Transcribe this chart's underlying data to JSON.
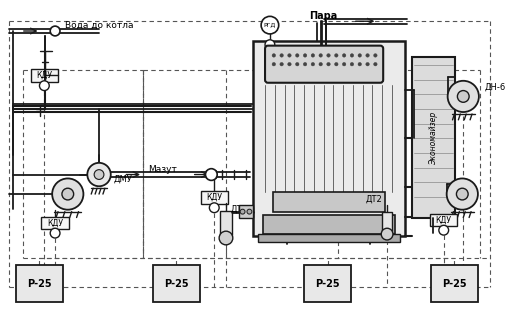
{
  "bg": "white",
  "lc": "#1a1a1a",
  "gray1": "#888888",
  "gray2": "#aaaaaa",
  "gray3": "#cccccc",
  "gray4": "#dddddd",
  "labels": {
    "voda": "Вода до котла",
    "para": "Пара",
    "mazut": "Мазут",
    "kdu": "КДУ",
    "dmu": "ДМУ",
    "dn6": "ДН-6",
    "dt2": "ДТ2",
    "ekonom": "Экономайзер",
    "r25": "Р-25",
    "rgd": "РГД"
  },
  "figsize": [
    5.09,
    3.11
  ],
  "dpi": 100
}
